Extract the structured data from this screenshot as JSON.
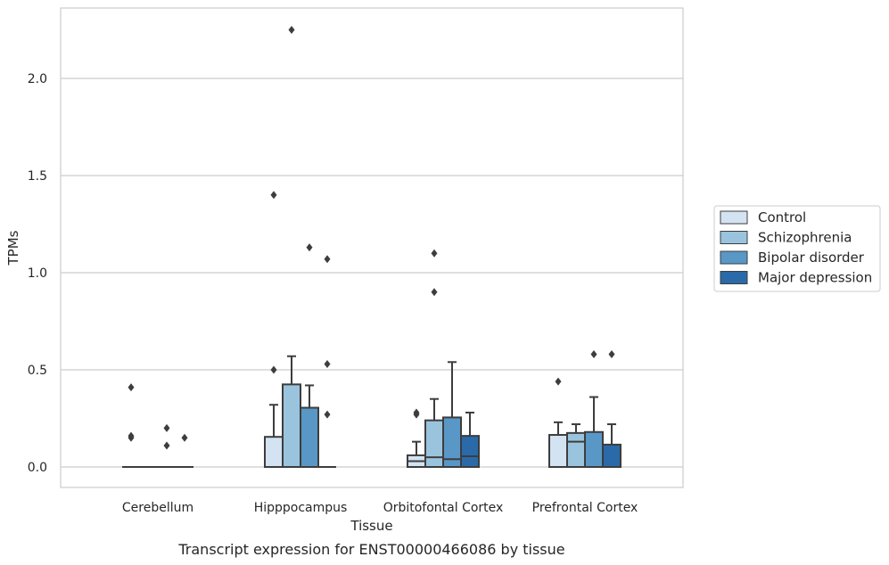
{
  "caption": "Transcript expression for ENST00000466086 by tissue",
  "chart_data": {
    "type": "box",
    "xlabel": "Tissue",
    "ylabel": "TPMs",
    "ylim": [
      -0.11,
      2.37
    ],
    "yticks": [
      "0.0",
      "0.5",
      "1.0",
      "1.5",
      "2.0"
    ],
    "ytick_values": [
      0,
      0.5,
      1.0,
      1.5,
      2.0
    ],
    "grid": "horizontal",
    "legend_placement": "right",
    "categories": [
      "Cerebellum",
      "Hipppocampus",
      "Orbitofontal Cortex",
      "Prefrontal Cortex"
    ],
    "series": [
      {
        "name": "Control",
        "color": "#d4e3f2",
        "boxes": [
          {
            "q1": 0,
            "median": 0,
            "q3": 0,
            "whisker_low": 0,
            "whisker_high": 0,
            "outliers": [
              0.41,
              0.16,
              0.15
            ]
          },
          {
            "q1": 0,
            "median": 0,
            "q3": 0.155,
            "whisker_low": 0,
            "whisker_high": 0.32,
            "outliers": [
              0.5,
              1.4
            ]
          },
          {
            "q1": 0,
            "median": 0.03,
            "q3": 0.06,
            "whisker_low": 0,
            "whisker_high": 0.13,
            "outliers": [
              0.27,
              0.28
            ]
          },
          {
            "q1": 0,
            "median": 0,
            "q3": 0.165,
            "whisker_low": 0,
            "whisker_high": 0.23,
            "outliers": [
              0.44
            ]
          }
        ]
      },
      {
        "name": "Schizophrenia",
        "color": "#9ac4de",
        "boxes": [
          {
            "q1": 0,
            "median": 0,
            "q3": 0,
            "whisker_low": 0,
            "whisker_high": 0,
            "outliers": []
          },
          {
            "q1": 0,
            "median": 0,
            "q3": 0.425,
            "whisker_low": 0,
            "whisker_high": 0.57,
            "outliers": [
              2.25
            ]
          },
          {
            "q1": 0,
            "median": 0.05,
            "q3": 0.24,
            "whisker_low": 0,
            "whisker_high": 0.35,
            "outliers": [
              0.9,
              1.1
            ]
          },
          {
            "q1": 0,
            "median": 0.13,
            "q3": 0.175,
            "whisker_low": 0,
            "whisker_high": 0.22,
            "outliers": []
          }
        ]
      },
      {
        "name": "Bipolar disorder",
        "color": "#5997c7",
        "boxes": [
          {
            "q1": 0,
            "median": 0,
            "q3": 0,
            "whisker_low": 0,
            "whisker_high": 0,
            "outliers": [
              0.2,
              0.11
            ]
          },
          {
            "q1": 0,
            "median": 0,
            "q3": 0.305,
            "whisker_low": 0,
            "whisker_high": 0.42,
            "outliers": [
              1.13
            ]
          },
          {
            "q1": 0,
            "median": 0.04,
            "q3": 0.255,
            "whisker_low": 0,
            "whisker_high": 0.54,
            "outliers": []
          },
          {
            "q1": 0,
            "median": 0,
            "q3": 0.18,
            "whisker_low": 0,
            "whisker_high": 0.36,
            "outliers": [
              0.58
            ]
          }
        ]
      },
      {
        "name": "Major depression",
        "color": "#2a6aa8",
        "boxes": [
          {
            "q1": 0,
            "median": 0,
            "q3": 0,
            "whisker_low": 0,
            "whisker_high": 0,
            "outliers": [
              0.15
            ]
          },
          {
            "q1": 0,
            "median": 0,
            "q3": 0,
            "whisker_low": 0,
            "whisker_high": 0,
            "outliers": [
              0.53,
              0.27,
              1.07
            ]
          },
          {
            "q1": 0,
            "median": 0.055,
            "q3": 0.16,
            "whisker_low": 0,
            "whisker_high": 0.28,
            "outliers": []
          },
          {
            "q1": 0,
            "median": 0,
            "q3": 0.115,
            "whisker_low": 0,
            "whisker_high": 0.22,
            "outliers": [
              0.58
            ]
          }
        ]
      }
    ]
  }
}
